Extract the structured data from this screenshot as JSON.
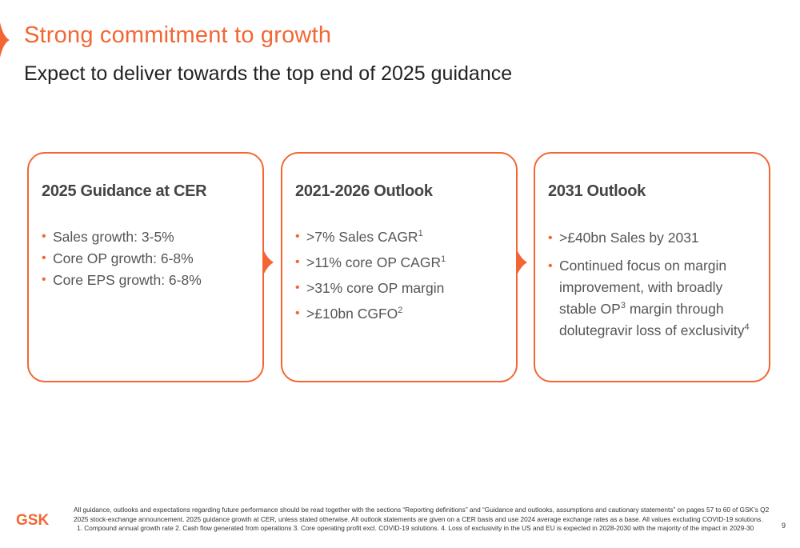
{
  "slide": {
    "title": "Strong commitment to growth",
    "subtitle": "Expect to deliver towards the top end of 2025 guidance",
    "accent_color": "#f36633"
  },
  "cards": [
    {
      "heading": "2025 Guidance at CER",
      "items": [
        {
          "text": "Sales growth: 3-5%",
          "sup": ""
        },
        {
          "text": "Core OP growth: 6-8%",
          "sup": ""
        },
        {
          "text": "Core EPS growth: 6-8%",
          "sup": ""
        }
      ]
    },
    {
      "heading": "2021-2026 Outlook",
      "items": [
        {
          "text": ">7% Sales CAGR",
          "sup": "1"
        },
        {
          "text": ">11% core OP CAGR",
          "sup": "1"
        },
        {
          "text": ">31% core OP margin",
          "sup": ""
        },
        {
          "text": ">£10bn CGFO",
          "sup": "2"
        }
      ]
    },
    {
      "heading": "2031 Outlook",
      "items": [
        {
          "text": ">£40bn Sales by 2031",
          "sup": ""
        },
        {
          "text_before": "Continued focus on margin improvement, with broadly stable OP",
          "sup_mid": "3",
          "text_after": " margin through dolutegravir loss of exclusivity",
          "sup": "4"
        }
      ]
    }
  ],
  "footer": {
    "logo_text": "GSK",
    "note_line1": "All guidance, outlooks and expectations regarding future performance should be read together with the sections “Reporting definitions” and “Guidance and outlooks, assumptions and cautionary statements” on pages 57 to 60 of GSK’s Q2",
    "note_line2": "2025 stock-exchange announcement. 2025 guidance growth at CER, unless stated otherwise.  All outlook statements are given on a CER basis and use 2024 average exchange rates as a base. All values excluding COVID-19 solutions.",
    "note_line3": "1. Compound annual growth rate    2. Cash flow generated from operations    3. Core operating profit excl. COVID-19 solutions.    4. Loss of exclusivity in the US and EU is expected in 2028-2030 with the majority of the impact in 2029-30",
    "page_number": "9"
  }
}
